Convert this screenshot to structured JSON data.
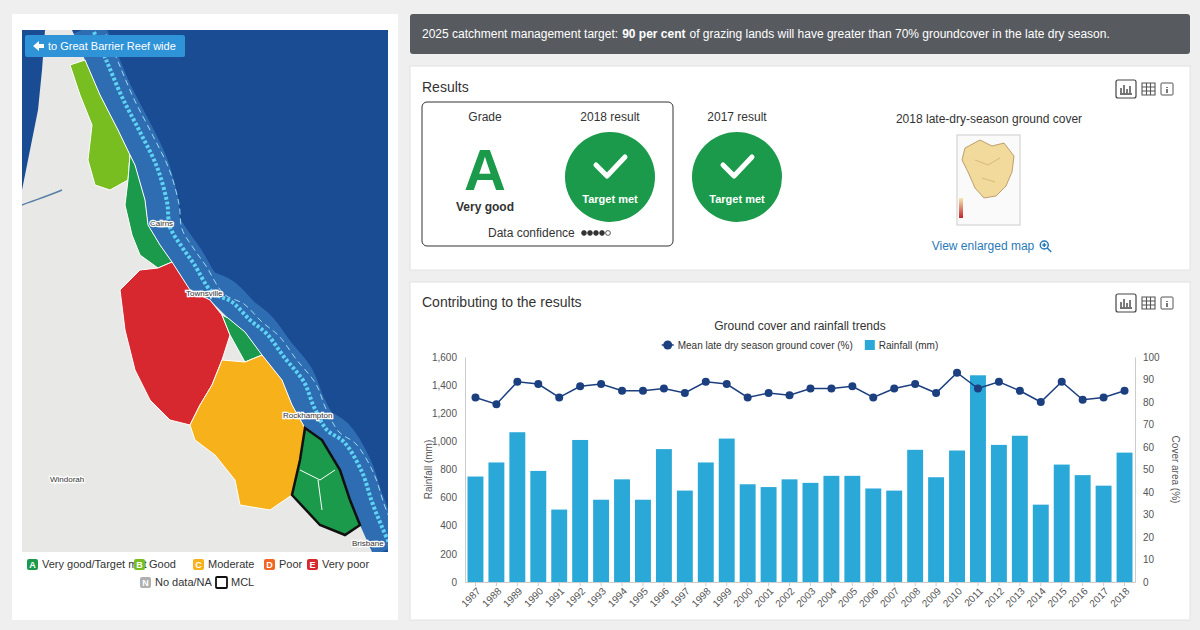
{
  "page": {
    "banner": {
      "text_before": "2025 catchment management target:",
      "emphasis": "90 per cent",
      "text_after": "of grazing lands will have greater than 70% groundcover in the late dry season."
    },
    "map": {
      "back_button": "to Great Barrier Reef wide",
      "places": [
        "Cairns",
        "Townsville",
        "Rockhampton",
        "Windorah",
        "Brisbane"
      ],
      "region_grades": [
        "B",
        "A",
        "E",
        "A",
        "C",
        "A"
      ],
      "legend": [
        {
          "code": "A",
          "label": "Very good/Target met",
          "color": "#1a9a4a"
        },
        {
          "code": "B",
          "label": "Good",
          "color": "#78be20"
        },
        {
          "code": "C",
          "label": "Moderate",
          "color": "#f7b21b"
        },
        {
          "code": "D",
          "label": "Poor",
          "color": "#f26522"
        },
        {
          "code": "E",
          "label": "Very poor",
          "color": "#d7282f"
        },
        {
          "code": "N",
          "label": "No data/NA",
          "color": "#b0b0b0"
        },
        {
          "label": "MCL"
        }
      ]
    },
    "results": {
      "heading": "Results",
      "grade_label": "Grade",
      "grade": "A",
      "grade_text": "Very good",
      "current": {
        "label": "2018 result",
        "status": "Target met"
      },
      "previous": {
        "label": "2017 result",
        "status": "Target met"
      },
      "data_confidence": {
        "label": "Data confidence",
        "rating": 4,
        "out_of": 5
      },
      "map_thumbnail": {
        "title": "2018 late-dry-season ground cover",
        "link": "View enlarged map"
      }
    },
    "contributing": {
      "heading": "Contributing to the results"
    }
  },
  "chart_data": {
    "type": "bar",
    "title": "Ground cover and rainfall trends",
    "categories": [
      "1987",
      "1988",
      "1989",
      "1990",
      "1991",
      "1992",
      "1993",
      "1994",
      "1995",
      "1996",
      "1997",
      "1998",
      "1999",
      "2000",
      "2001",
      "2002",
      "2003",
      "2004",
      "2005",
      "2006",
      "2007",
      "2008",
      "2009",
      "2010",
      "2011",
      "2012",
      "2013",
      "2014",
      "2015",
      "2016",
      "2017",
      "2018"
    ],
    "series": [
      {
        "name": "Mean late dry season ground cover (%)",
        "type": "line",
        "color": "#1b3f7f",
        "marker": "circle",
        "axis": "y2",
        "values": [
          82,
          79,
          89,
          88,
          82,
          87,
          88,
          85,
          85,
          86,
          84,
          89,
          88,
          82,
          84,
          83,
          86,
          86,
          87,
          82,
          86,
          88,
          84,
          93,
          86,
          89,
          85,
          80,
          89,
          81,
          82,
          85
        ]
      },
      {
        "name": "Rainfall (mm)",
        "type": "bar",
        "color": "#2aa8d8",
        "values": [
          750,
          850,
          1065,
          790,
          515,
          1010,
          585,
          730,
          585,
          945,
          650,
          850,
          1020,
          695,
          675,
          730,
          705,
          755,
          755,
          665,
          650,
          940,
          745,
          935,
          1470,
          975,
          1040,
          550,
          835,
          760,
          685,
          920
        ]
      }
    ],
    "y_label": "Rainfall (mm)",
    "y2_label": "Cover area (%)",
    "ylim": [
      0,
      1600
    ],
    "yticks": [
      0,
      200,
      400,
      600,
      800,
      {
        "value": 1000,
        "label": "1,000"
      },
      {
        "value": 1200,
        "label": "1,200"
      },
      {
        "value": 1400,
        "label": "1,400"
      },
      {
        "value": 1600,
        "label": "1,600"
      }
    ],
    "y2lim": [
      0,
      100
    ],
    "y2ticks": [
      0,
      10,
      20,
      30,
      40,
      50,
      60,
      70,
      80,
      90,
      100
    ],
    "grid": false,
    "legend": "top"
  }
}
